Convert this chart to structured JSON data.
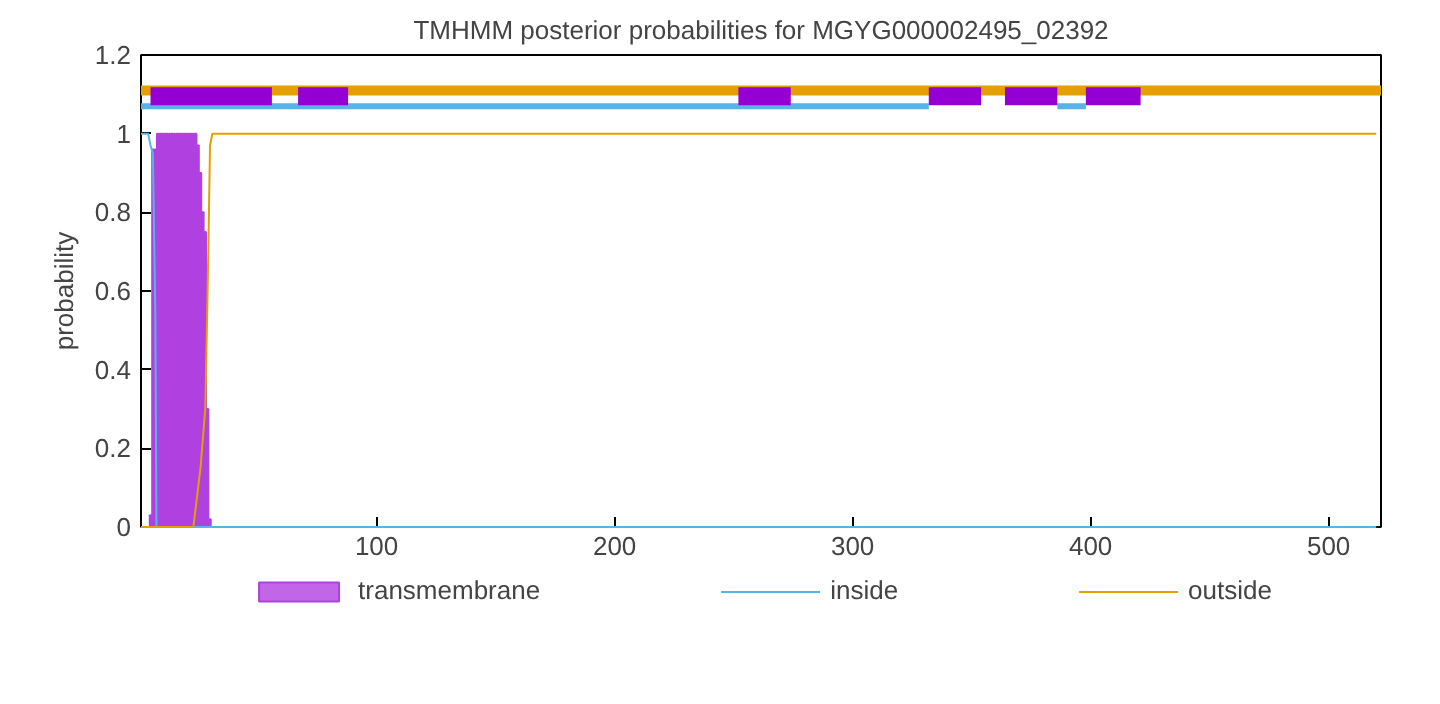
{
  "chart_data": {
    "type": "line",
    "title": "TMHMM posterior probabilities for MGYG000002495_02392",
    "ylabel": "probability",
    "xlim": [
      1,
      522
    ],
    "ylim": [
      0,
      1.2
    ],
    "xticks": [
      100,
      200,
      300,
      400,
      500
    ],
    "yticks": [
      0,
      0.2,
      0.4,
      0.6,
      0.8,
      1,
      1.2
    ],
    "grid": false,
    "legend": "bottom",
    "series": [
      {
        "name": "transmembrane",
        "type": "bar",
        "color": "#b040e0",
        "x": [
          5,
          6,
          7,
          8,
          9,
          10,
          11,
          12,
          13,
          14,
          15,
          16,
          17,
          18,
          19,
          20,
          21,
          22,
          23,
          24,
          25,
          26,
          27,
          28,
          29,
          30
        ],
        "values": [
          0.03,
          0.96,
          0.96,
          1,
          1,
          1,
          1,
          1,
          1,
          1,
          1,
          1,
          1,
          1,
          1,
          1,
          1,
          1,
          1,
          1,
          0.97,
          0.9,
          0.8,
          0.75,
          0.3,
          0.02
        ]
      },
      {
        "name": "inside",
        "color": "#56b4e9",
        "x": [
          1,
          4,
          5,
          6,
          7,
          7.5,
          520
        ],
        "values": [
          1,
          1,
          0.97,
          0.95,
          0.55,
          0,
          0
        ]
      },
      {
        "name": "outside",
        "color": "#e69f00",
        "x": [
          1,
          23,
          26,
          28,
          29,
          30,
          31,
          520
        ],
        "values": [
          0,
          0,
          0.15,
          0.3,
          0.6,
          0.97,
          1,
          1
        ]
      },
      {
        "color": "#e69f00",
        "x": [
          1,
          522
        ],
        "values": [
          1.11,
          1.11
        ]
      },
      {
        "color": "#56b4e9",
        "x": [
          1,
          332,
          360,
          386,
          398
        ],
        "values": [
          1.07,
          1.07,
          null,
          1.07,
          1.07
        ]
      },
      {
        "color": "#9400d3",
        "x": [
          5,
          56,
          60,
          67,
          88,
          170,
          252,
          274,
          300,
          332,
          354,
          359,
          364,
          386,
          392,
          398,
          421
        ],
        "values": [
          1.095,
          1.095,
          null,
          1.095,
          1.095,
          null,
          1.095,
          1.095,
          null,
          1.095,
          1.095,
          null,
          1.095,
          1.095,
          null,
          1.095,
          1.095
        ]
      }
    ]
  }
}
